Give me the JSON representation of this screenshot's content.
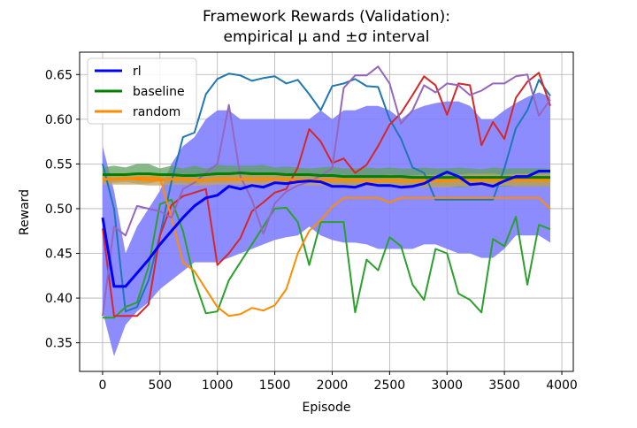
{
  "chart_data": {
    "type": "line",
    "title_line1": "Framework Rewards (Validation):",
    "title_line2": "empirical μ and ±σ interval",
    "xlabel": "Episode",
    "ylabel": "Reward",
    "xlim": [
      -200,
      4100
    ],
    "ylim": [
      0.318,
      0.675
    ],
    "xticks": [
      0,
      500,
      1000,
      1500,
      2000,
      2500,
      3000,
      3500,
      4000
    ],
    "yticks": [
      0.35,
      0.4,
      0.45,
      0.5,
      0.55,
      0.6,
      0.65
    ],
    "ytick_labels": [
      "0.35",
      "0.40",
      "0.45",
      "0.50",
      "0.55",
      "0.60",
      "0.65"
    ],
    "grid": true,
    "legend_position": "upper-left",
    "legend": [
      {
        "label": "rl",
        "color": "#0000ff"
      },
      {
        "label": "baseline",
        "color": "#008000"
      },
      {
        "label": "random",
        "color": "#ff8c00"
      }
    ],
    "x": [
      0,
      100,
      200,
      300,
      400,
      500,
      600,
      700,
      800,
      900,
      1000,
      1100,
      1200,
      1300,
      1400,
      1500,
      1600,
      1700,
      1800,
      1900,
      2000,
      2100,
      2200,
      2300,
      2400,
      2500,
      2600,
      2700,
      2800,
      2900,
      3000,
      3100,
      3200,
      3300,
      3400,
      3500,
      3600,
      3700,
      3800,
      3900
    ],
    "series": [
      {
        "name": "rl",
        "kind": "mean",
        "color": "#0000ff",
        "values": [
          0.49,
          0.413,
          0.413,
          0.428,
          0.443,
          0.46,
          0.475,
          0.49,
          0.503,
          0.512,
          0.515,
          0.525,
          0.522,
          0.526,
          0.524,
          0.529,
          0.528,
          0.53,
          0.531,
          0.53,
          0.525,
          0.525,
          0.524,
          0.528,
          0.526,
          0.526,
          0.524,
          0.525,
          0.528,
          0.535,
          0.541,
          0.536,
          0.527,
          0.528,
          0.525,
          0.531,
          0.536,
          0.536,
          0.542,
          0.542
        ]
      },
      {
        "name": "rl",
        "kind": "sigma-band",
        "color": "#8080ff",
        "upper": [
          0.57,
          0.52,
          0.45,
          0.48,
          0.5,
          0.52,
          0.55,
          0.57,
          0.58,
          0.6,
          0.61,
          0.61,
          0.6,
          0.6,
          0.6,
          0.6,
          0.6,
          0.6,
          0.6,
          0.61,
          0.6,
          0.61,
          0.61,
          0.615,
          0.615,
          0.61,
          0.6,
          0.61,
          0.615,
          0.618,
          0.62,
          0.62,
          0.615,
          0.6,
          0.6,
          0.61,
          0.618,
          0.625,
          0.63,
          0.625
        ],
        "lower": [
          0.385,
          0.335,
          0.37,
          0.385,
          0.395,
          0.41,
          0.42,
          0.43,
          0.44,
          0.44,
          0.44,
          0.445,
          0.45,
          0.455,
          0.46,
          0.465,
          0.468,
          0.47,
          0.48,
          0.47,
          0.465,
          0.462,
          0.462,
          0.46,
          0.455,
          0.455,
          0.455,
          0.455,
          0.46,
          0.46,
          0.455,
          0.45,
          0.45,
          0.445,
          0.445,
          0.455,
          0.47,
          0.47,
          0.47,
          0.462
        ]
      },
      {
        "name": "baseline",
        "kind": "mean",
        "color": "#008000",
        "values": [
          0.538,
          0.538,
          0.538,
          0.539,
          0.539,
          0.538,
          0.538,
          0.537,
          0.537,
          0.538,
          0.539,
          0.539,
          0.54,
          0.539,
          0.539,
          0.539,
          0.538,
          0.538,
          0.538,
          0.537,
          0.537,
          0.536,
          0.536,
          0.536,
          0.536,
          0.536,
          0.536,
          0.535,
          0.535,
          0.535,
          0.535,
          0.535,
          0.535,
          0.535,
          0.535,
          0.535,
          0.535,
          0.535,
          0.535,
          0.535
        ]
      },
      {
        "name": "baseline",
        "kind": "sigma-band",
        "color": "#5fa05f",
        "upper": [
          0.546,
          0.548,
          0.546,
          0.55,
          0.55,
          0.545,
          0.548,
          0.545,
          0.548,
          0.545,
          0.549,
          0.548,
          0.548,
          0.548,
          0.549,
          0.546,
          0.547,
          0.546,
          0.545,
          0.546,
          0.547,
          0.545,
          0.545,
          0.546,
          0.545,
          0.546,
          0.545,
          0.545,
          0.546,
          0.545,
          0.545,
          0.546,
          0.545,
          0.544,
          0.546,
          0.545,
          0.545,
          0.545,
          0.545,
          0.545
        ],
        "lower": [
          0.53,
          0.529,
          0.53,
          0.528,
          0.528,
          0.531,
          0.528,
          0.529,
          0.527,
          0.53,
          0.529,
          0.53,
          0.531,
          0.53,
          0.529,
          0.532,
          0.529,
          0.53,
          0.531,
          0.528,
          0.527,
          0.527,
          0.527,
          0.526,
          0.527,
          0.526,
          0.527,
          0.525,
          0.524,
          0.525,
          0.525,
          0.524,
          0.525,
          0.526,
          0.524,
          0.525,
          0.525,
          0.525,
          0.525,
          0.525
        ]
      },
      {
        "name": "random",
        "kind": "mean",
        "color": "#ff8c00",
        "values": [
          0.533,
          0.533,
          0.534,
          0.533,
          0.532,
          0.532,
          0.533,
          0.533,
          0.532,
          0.532,
          0.533,
          0.533,
          0.533,
          0.533,
          0.533,
          0.533,
          0.533,
          0.532,
          0.532,
          0.532,
          0.532,
          0.532,
          0.532,
          0.531,
          0.531,
          0.532,
          0.531,
          0.531,
          0.531,
          0.531,
          0.531,
          0.532,
          0.532,
          0.532,
          0.532,
          0.532,
          0.532,
          0.532,
          0.532,
          0.532
        ]
      },
      {
        "name": "random",
        "kind": "sigma-band",
        "color": "#c8a060",
        "upper": [
          0.539,
          0.539,
          0.54,
          0.538,
          0.538,
          0.538,
          0.538,
          0.539,
          0.538,
          0.538,
          0.538,
          0.539,
          0.538,
          0.539,
          0.538,
          0.538,
          0.539,
          0.538,
          0.538,
          0.537,
          0.537,
          0.538,
          0.537,
          0.537,
          0.537,
          0.538,
          0.537,
          0.537,
          0.538,
          0.538,
          0.538,
          0.538,
          0.539,
          0.539,
          0.539,
          0.538,
          0.539,
          0.539,
          0.539,
          0.539
        ],
        "lower": [
          0.527,
          0.527,
          0.527,
          0.527,
          0.526,
          0.526,
          0.527,
          0.527,
          0.526,
          0.526,
          0.527,
          0.527,
          0.527,
          0.527,
          0.527,
          0.527,
          0.527,
          0.526,
          0.526,
          0.526,
          0.526,
          0.526,
          0.526,
          0.525,
          0.525,
          0.526,
          0.525,
          0.525,
          0.524,
          0.524,
          0.524,
          0.525,
          0.525,
          0.525,
          0.525,
          0.526,
          0.525,
          0.525,
          0.525,
          0.525
        ]
      },
      {
        "kind": "run",
        "color": "#1f77b4",
        "values": [
          0.55,
          0.5,
          0.385,
          0.39,
          0.42,
          0.47,
          0.53,
          0.58,
          0.585,
          0.628,
          0.645,
          0.651,
          0.649,
          0.643,
          0.646,
          0.648,
          0.64,
          0.644,
          0.628,
          0.61,
          0.637,
          0.64,
          0.645,
          0.637,
          0.636,
          0.6,
          0.578,
          0.546,
          0.54,
          0.51,
          0.51,
          0.51,
          0.51,
          0.51,
          0.51,
          0.545,
          0.59,
          0.61,
          0.644,
          0.626
        ]
      },
      {
        "kind": "run",
        "color": "#2ca02c",
        "values": [
          0.378,
          0.378,
          0.39,
          0.395,
          0.435,
          0.505,
          0.51,
          0.475,
          0.42,
          0.383,
          0.385,
          0.42,
          0.44,
          0.46,
          0.48,
          0.5,
          0.501,
          0.485,
          0.437,
          0.485,
          0.485,
          0.485,
          0.384,
          0.443,
          0.431,
          0.468,
          0.458,
          0.415,
          0.398,
          0.455,
          0.45,
          0.405,
          0.398,
          0.384,
          0.466,
          0.458,
          0.491,
          0.415,
          0.482,
          0.477
        ]
      },
      {
        "kind": "run",
        "color": "#d62728",
        "values": [
          0.478,
          0.38,
          0.38,
          0.38,
          0.393,
          0.47,
          0.504,
          0.514,
          0.518,
          0.522,
          0.437,
          0.45,
          0.467,
          0.497,
          0.507,
          0.518,
          0.522,
          0.546,
          0.589,
          0.575,
          0.551,
          0.556,
          0.54,
          0.549,
          0.57,
          0.594,
          0.607,
          0.627,
          0.648,
          0.638,
          0.605,
          0.64,
          0.638,
          0.571,
          0.597,
          0.578,
          0.624,
          0.642,
          0.652,
          0.615
        ]
      },
      {
        "kind": "run",
        "color": "#ff8c00",
        "values": [
          0.533,
          0.533,
          0.533,
          0.535,
          0.535,
          0.535,
          0.49,
          0.44,
          0.43,
          0.41,
          0.39,
          0.38,
          0.382,
          0.389,
          0.386,
          0.392,
          0.41,
          0.45,
          0.475,
          0.487,
          0.502,
          0.512,
          0.512,
          0.512,
          0.512,
          0.507,
          0.512,
          0.512,
          0.512,
          0.512,
          0.512,
          0.512,
          0.512,
          0.512,
          0.512,
          0.512,
          0.512,
          0.512,
          0.512,
          0.5
        ]
      },
      {
        "kind": "run",
        "color": "#9467bd",
        "values": [
          0.38,
          0.48,
          0.47,
          0.503,
          0.5,
          0.497,
          0.49,
          0.522,
          0.529,
          0.54,
          0.55,
          0.616,
          0.536,
          0.51,
          0.472,
          0.506,
          0.519,
          0.526,
          0.53,
          0.537,
          0.545,
          0.635,
          0.649,
          0.649,
          0.659,
          0.64,
          0.595,
          0.61,
          0.638,
          0.63,
          0.64,
          0.638,
          0.627,
          0.632,
          0.64,
          0.64,
          0.648,
          0.65,
          0.604,
          0.622
        ]
      }
    ]
  }
}
